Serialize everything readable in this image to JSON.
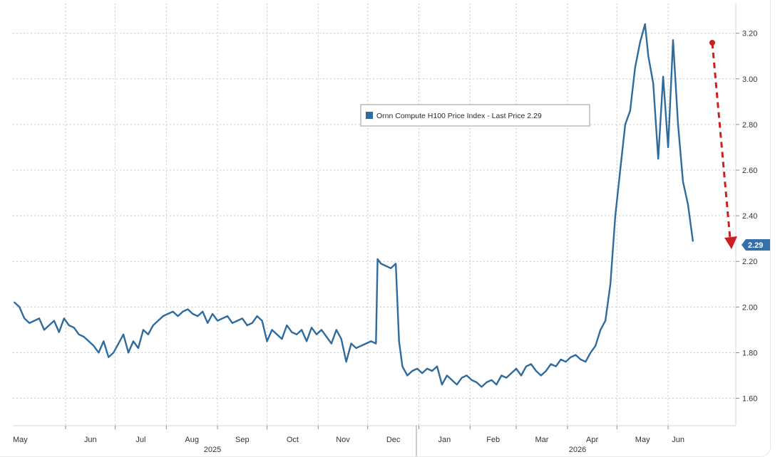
{
  "chart_data": {
    "type": "line",
    "title": "",
    "xlabel": "",
    "ylabel": "",
    "x_tick_labels": [
      "May",
      "Jun",
      "Jul",
      "Aug",
      "Sep",
      "Oct",
      "Nov",
      "Dec",
      "Jan",
      "Feb",
      "Mar",
      "Apr",
      "May",
      "Jun"
    ],
    "year_labels": [
      "2025",
      "2026"
    ],
    "y_tick_labels": [
      "1.60",
      "1.80",
      "2.00",
      "2.20",
      "2.40",
      "2.60",
      "2.80",
      "3.00",
      "3.20"
    ],
    "ylim": [
      1.48,
      3.33
    ],
    "grid": true,
    "legend": {
      "label": "Ornn Compute H100 Price Index - Last Price 2.29",
      "position": "top-center"
    },
    "last_price_label": "2.29",
    "annotation": "red dashed downward arrow from June peak",
    "colors": {
      "line": "#2e6b9e",
      "badge": "#3571a8",
      "arrow": "#cc1f1f",
      "grid": "#c8c8c8"
    },
    "series": [
      {
        "name": "Ornn Compute H100 Price Index",
        "x": [
          "2025-05-01",
          "2025-05-04",
          "2025-05-07",
          "2025-05-10",
          "2025-05-13",
          "2025-05-16",
          "2025-05-19",
          "2025-05-22",
          "2025-05-25",
          "2025-05-28",
          "2025-05-31",
          "2025-06-03",
          "2025-06-06",
          "2025-06-09",
          "2025-06-12",
          "2025-06-15",
          "2025-06-18",
          "2025-06-21",
          "2025-06-24",
          "2025-06-27",
          "2025-06-30",
          "2025-07-03",
          "2025-07-06",
          "2025-07-09",
          "2025-07-12",
          "2025-07-15",
          "2025-07-18",
          "2025-07-21",
          "2025-07-24",
          "2025-07-27",
          "2025-07-30",
          "2025-08-02",
          "2025-08-05",
          "2025-08-08",
          "2025-08-11",
          "2025-08-14",
          "2025-08-17",
          "2025-08-20",
          "2025-08-23",
          "2025-08-26",
          "2025-08-29",
          "2025-09-01",
          "2025-09-04",
          "2025-09-07",
          "2025-09-10",
          "2025-09-13",
          "2025-09-16",
          "2025-09-19",
          "2025-09-22",
          "2025-09-25",
          "2025-09-28",
          "2025-10-01",
          "2025-10-04",
          "2025-10-07",
          "2025-10-10",
          "2025-10-13",
          "2025-10-16",
          "2025-10-19",
          "2025-10-22",
          "2025-10-25",
          "2025-10-28",
          "2025-10-31",
          "2025-11-03",
          "2025-11-06",
          "2025-11-09",
          "2025-11-12",
          "2025-11-15",
          "2025-11-18",
          "2025-11-21",
          "2025-11-24",
          "2025-11-27",
          "2025-11-30",
          "2025-12-03",
          "2025-12-06",
          "2025-12-07",
          "2025-12-09",
          "2025-12-12",
          "2025-12-15",
          "2025-12-18",
          "2025-12-20",
          "2025-12-22",
          "2025-12-25",
          "2025-12-28",
          "2025-12-31",
          "2026-01-03",
          "2026-01-06",
          "2026-01-09",
          "2026-01-12",
          "2026-01-15",
          "2026-01-18",
          "2026-01-21",
          "2026-01-24",
          "2026-01-27",
          "2026-01-30",
          "2026-02-02",
          "2026-02-05",
          "2026-02-08",
          "2026-02-11",
          "2026-02-14",
          "2026-02-17",
          "2026-02-20",
          "2026-02-23",
          "2026-02-26",
          "2026-03-01",
          "2026-03-04",
          "2026-03-07",
          "2026-03-10",
          "2026-03-13",
          "2026-03-16",
          "2026-03-19",
          "2026-03-22",
          "2026-03-25",
          "2026-03-28",
          "2026-03-31",
          "2026-04-03",
          "2026-04-06",
          "2026-04-09",
          "2026-04-12",
          "2026-04-15",
          "2026-04-18",
          "2026-04-21",
          "2026-04-24",
          "2026-04-27",
          "2026-04-30",
          "2026-05-03",
          "2026-05-06",
          "2026-05-09",
          "2026-05-12",
          "2026-05-15",
          "2026-05-18",
          "2026-05-20",
          "2026-05-23",
          "2026-05-26",
          "2026-05-29",
          "2026-06-01",
          "2026-06-04",
          "2026-06-07",
          "2026-06-10",
          "2026-06-13",
          "2026-06-16"
        ],
        "values": [
          2.02,
          2.0,
          1.95,
          1.93,
          1.94,
          1.95,
          1.9,
          1.92,
          1.94,
          1.89,
          1.95,
          1.92,
          1.91,
          1.88,
          1.87,
          1.85,
          1.83,
          1.8,
          1.85,
          1.78,
          1.8,
          1.84,
          1.88,
          1.8,
          1.85,
          1.82,
          1.9,
          1.88,
          1.92,
          1.94,
          1.96,
          1.97,
          1.98,
          1.96,
          1.98,
          1.99,
          1.97,
          1.96,
          1.98,
          1.93,
          1.97,
          1.94,
          1.95,
          1.96,
          1.93,
          1.94,
          1.95,
          1.92,
          1.93,
          1.96,
          1.94,
          1.85,
          1.9,
          1.88,
          1.86,
          1.92,
          1.89,
          1.88,
          1.9,
          1.85,
          1.91,
          1.88,
          1.9,
          1.87,
          1.84,
          1.9,
          1.86,
          1.76,
          1.84,
          1.82,
          1.83,
          1.84,
          1.85,
          1.84,
          2.21,
          2.19,
          2.18,
          2.17,
          2.19,
          1.85,
          1.74,
          1.7,
          1.72,
          1.73,
          1.71,
          1.73,
          1.72,
          1.74,
          1.66,
          1.7,
          1.68,
          1.66,
          1.69,
          1.7,
          1.68,
          1.67,
          1.65,
          1.67,
          1.68,
          1.66,
          1.7,
          1.69,
          1.71,
          1.73,
          1.7,
          1.74,
          1.75,
          1.72,
          1.7,
          1.72,
          1.75,
          1.74,
          1.77,
          1.76,
          1.78,
          1.79,
          1.77,
          1.76,
          1.8,
          1.83,
          1.9,
          1.94,
          2.1,
          2.4,
          2.6,
          2.8,
          2.86,
          3.05,
          3.16,
          3.24,
          3.1,
          2.98,
          2.65,
          3.01,
          2.7,
          3.17,
          2.8,
          2.55,
          2.45,
          2.29
        ],
        "color": "#2e6b9e"
      }
    ]
  }
}
